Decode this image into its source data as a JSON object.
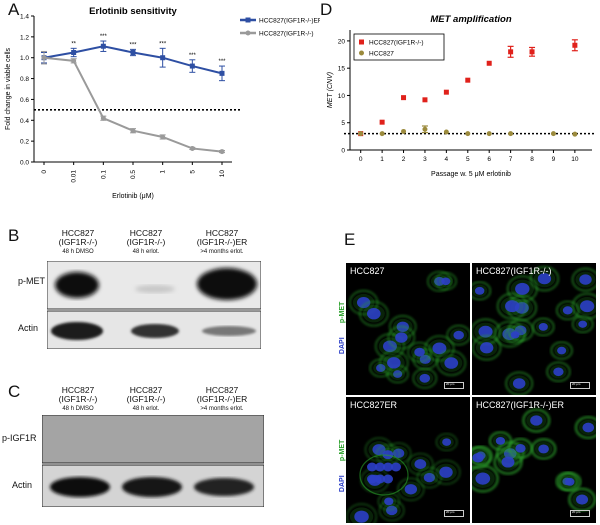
{
  "panels": {
    "a": "A",
    "b": "B",
    "c": "C",
    "d": "D",
    "e": "E"
  },
  "chart_data": [
    {
      "type": "line",
      "title": "Erlotinib sensitivity",
      "xlabel": "Erlotinib (μM)",
      "ylabel": "Fold change in viable cells",
      "categories": [
        "0",
        "0.01",
        "0.1",
        "0.5",
        "1",
        "5",
        "10"
      ],
      "ylim": [
        0,
        1.4
      ],
      "yticks": [
        "0.0",
        "0.2",
        "0.4",
        "0.6",
        "0.8",
        "1.0",
        "1.2",
        "1.4"
      ],
      "reference_line": 0.5,
      "significance": [
        "",
        "**",
        "***",
        "***",
        "***",
        "***",
        "***"
      ],
      "legend_placement": "top-right",
      "series": [
        {
          "name": "HCC827(IGF1R-/-)ER",
          "color": "#2e4fa3",
          "marker": "square",
          "values": [
            1.0,
            1.05,
            1.11,
            1.05,
            1.0,
            0.92,
            0.85
          ],
          "errors": [
            0.05,
            0.04,
            0.05,
            0.03,
            0.09,
            0.06,
            0.07
          ]
        },
        {
          "name": "HCC827(IGF1R-/-)",
          "color": "#9a9a9a",
          "marker": "circle",
          "values": [
            1.0,
            0.97,
            0.42,
            0.3,
            0.24,
            0.13,
            0.1
          ],
          "errors": [
            0.06,
            0.02,
            0.02,
            0.02,
            0.02,
            0.01,
            0.01
          ]
        }
      ]
    },
    {
      "type": "scatter",
      "title": "MET amplification",
      "xlabel": "Passage w. 5 μM erlotinib",
      "ylabel": "MET (CNV)",
      "x": [
        0,
        1,
        2,
        3,
        4,
        5,
        6,
        7,
        8,
        9,
        10
      ],
      "xlim": [
        -0.5,
        10.8
      ],
      "ylim": [
        0,
        22
      ],
      "yticks": [
        0,
        5,
        10,
        15,
        20
      ],
      "reference_line": 3,
      "legend_placement": "top-left",
      "series": [
        {
          "name": "HCC827(IGF1R-/-)",
          "color": "#e0211b",
          "marker": "square",
          "values": [
            3.0,
            5.1,
            9.6,
            9.2,
            10.6,
            12.8,
            15.9,
            18.0,
            18.0,
            19.2
          ],
          "x": [
            0,
            1,
            2,
            3,
            4,
            5,
            6,
            7,
            8,
            10
          ],
          "errors": [
            0,
            0,
            0,
            0,
            0,
            0,
            0,
            1.0,
            0.8,
            1.0
          ]
        },
        {
          "name": "HCC827",
          "color": "#9b8a3c",
          "marker": "circle",
          "values": [
            3.0,
            3.0,
            3.4,
            3.8,
            3.3,
            3.0,
            3.0,
            3.0,
            3.0,
            2.9
          ],
          "x": [
            0,
            1,
            2,
            3,
            4,
            5,
            6,
            7,
            9,
            10
          ],
          "errors": [
            0,
            0,
            0,
            0.6,
            0,
            0,
            0,
            0,
            0,
            0
          ]
        }
      ]
    }
  ],
  "blot_b": {
    "lanes": [
      {
        "l1": "HCC827",
        "l2": "(IGF1R-/-)",
        "l3": "48 h DMSO"
      },
      {
        "l1": "HCC827",
        "l2": "(IGF1R-/-)",
        "l3": "48 h erlot."
      },
      {
        "l1": "HCC827",
        "l2": "(IGF1R-/-)ER",
        "l3": ">4 months erlot."
      }
    ],
    "rows": [
      "p-MET",
      "Actin"
    ]
  },
  "blot_c": {
    "lanes": [
      {
        "l1": "HCC827",
        "l2": "(IGF1R-/-)",
        "l3": "48 h DMSO"
      },
      {
        "l1": "HCC827",
        "l2": "(IGF1R-/-)",
        "l3": "48 h erlot."
      },
      {
        "l1": "HCC827",
        "l2": "(IGF1R-/-)ER",
        "l3": ">4 months erlot."
      }
    ],
    "rows": [
      "p-IGF1R",
      "Actin"
    ]
  },
  "micro": {
    "tl": "HCC827",
    "tr": "HCC827(IGF1R-/-)",
    "bl": "HCC827ER",
    "br": "HCC827(IGF1R-/-)ER",
    "side_pmet": "p-MET",
    "side_dapi": "DAPI",
    "scale": "20 μm"
  },
  "colors": {
    "pmet": "#2aa02a",
    "dapi": "#2c3fc8"
  }
}
